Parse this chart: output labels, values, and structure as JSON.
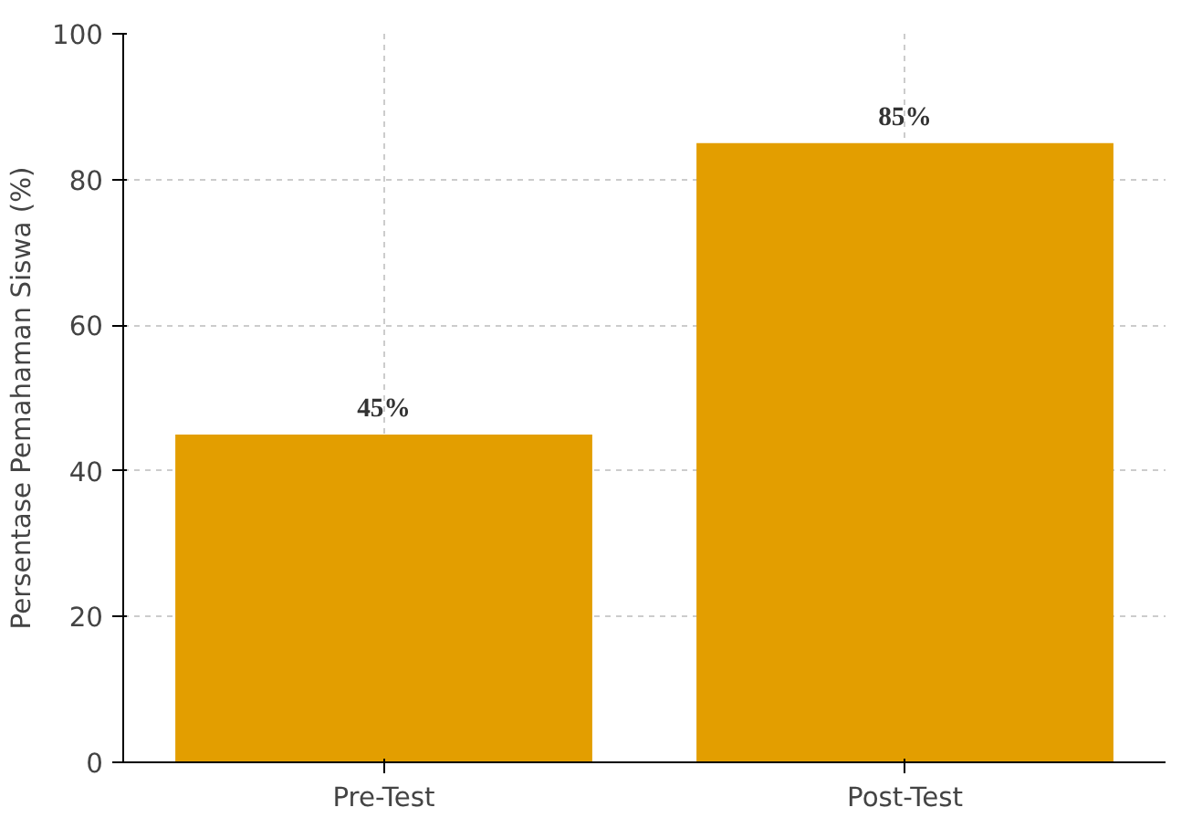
{
  "chart_data": {
    "type": "bar",
    "ylabel": "Persentase Pemahaman Siswa (%)",
    "categories": [
      "Pre-Test",
      "Post-Test"
    ],
    "values": [
      45,
      85
    ],
    "value_labels": [
      "45%",
      "85%"
    ],
    "color": "#e39e00",
    "ylim": [
      0,
      100
    ],
    "yticks": [
      0,
      20,
      40,
      60,
      80,
      100
    ],
    "grid": true
  }
}
